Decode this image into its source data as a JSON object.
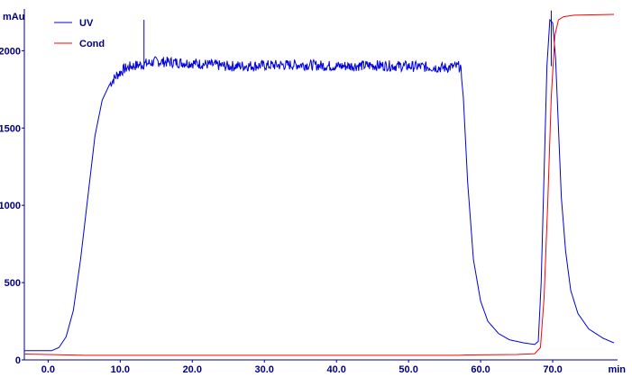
{
  "chart_data": {
    "type": "line",
    "title": "",
    "ylabel": "mAu",
    "xlabel": "min",
    "xlim": [
      -3.3,
      79
    ],
    "ylim": [
      0,
      2270
    ],
    "x_ticks": [
      0,
      10,
      20,
      30,
      40,
      50,
      60,
      70
    ],
    "x_tick_labels": [
      "0.0",
      "10.0",
      "20.0",
      "30.0",
      "40.0",
      "50.0",
      "60.0",
      "70.0"
    ],
    "y_ticks": [
      0,
      500,
      1000,
      1500,
      2000
    ],
    "y_tick_labels": [
      "0",
      "500",
      "1000",
      "1500",
      "2000"
    ],
    "grid": false,
    "legend_position": "top-left",
    "series": [
      {
        "name": "UV",
        "color": "#0000dd",
        "points": [
          [
            -3.3,
            60
          ],
          [
            0.5,
            60
          ],
          [
            1.5,
            80
          ],
          [
            2.5,
            150
          ],
          [
            3.5,
            320
          ],
          [
            4.5,
            650
          ],
          [
            5.5,
            1050
          ],
          [
            6.5,
            1450
          ],
          [
            7.5,
            1680
          ],
          [
            8.5,
            1780
          ],
          [
            9.5,
            1840
          ],
          [
            10.5,
            1880
          ],
          [
            11.5,
            1900
          ],
          [
            13,
            1910
          ],
          [
            15,
            1930
          ],
          [
            20,
            1920
          ],
          [
            25,
            1900
          ],
          [
            30,
            1905
          ],
          [
            35,
            1910
          ],
          [
            40,
            1900
          ],
          [
            45,
            1905
          ],
          [
            50,
            1900
          ],
          [
            55,
            1890
          ],
          [
            57.2,
            1900
          ],
          [
            57.6,
            1700
          ],
          [
            58.2,
            1150
          ],
          [
            59,
            650
          ],
          [
            60,
            380
          ],
          [
            61,
            250
          ],
          [
            62.5,
            170
          ],
          [
            64,
            130
          ],
          [
            66,
            110
          ],
          [
            67.5,
            100
          ],
          [
            68,
            120
          ],
          [
            68.4,
            500
          ],
          [
            68.8,
            1200
          ],
          [
            69.2,
            1900
          ],
          [
            69.6,
            2200
          ],
          [
            70,
            2180
          ],
          [
            70.4,
            1950
          ],
          [
            70.8,
            1500
          ],
          [
            71.2,
            1050
          ],
          [
            71.8,
            700
          ],
          [
            72.5,
            450
          ],
          [
            73.5,
            300
          ],
          [
            75,
            200
          ],
          [
            77,
            140
          ],
          [
            78.5,
            110
          ]
        ]
      },
      {
        "name": "Cond",
        "color": "#ff0000",
        "points": [
          [
            -3.3,
            38
          ],
          [
            0,
            35
          ],
          [
            5,
            30
          ],
          [
            20,
            30
          ],
          [
            40,
            30
          ],
          [
            57,
            30
          ],
          [
            58,
            32
          ],
          [
            65,
            35
          ],
          [
            67.5,
            40
          ],
          [
            68.3,
            80
          ],
          [
            68.8,
            400
          ],
          [
            69.3,
            1000
          ],
          [
            69.8,
            1700
          ],
          [
            70.3,
            2100
          ],
          [
            70.8,
            2200
          ],
          [
            71.5,
            2220
          ],
          [
            73,
            2230
          ],
          [
            78.5,
            2235
          ]
        ],
        "spikes": [
          [
            13.3,
            2200
          ],
          [
            69.8,
            2260
          ]
        ]
      }
    ]
  }
}
